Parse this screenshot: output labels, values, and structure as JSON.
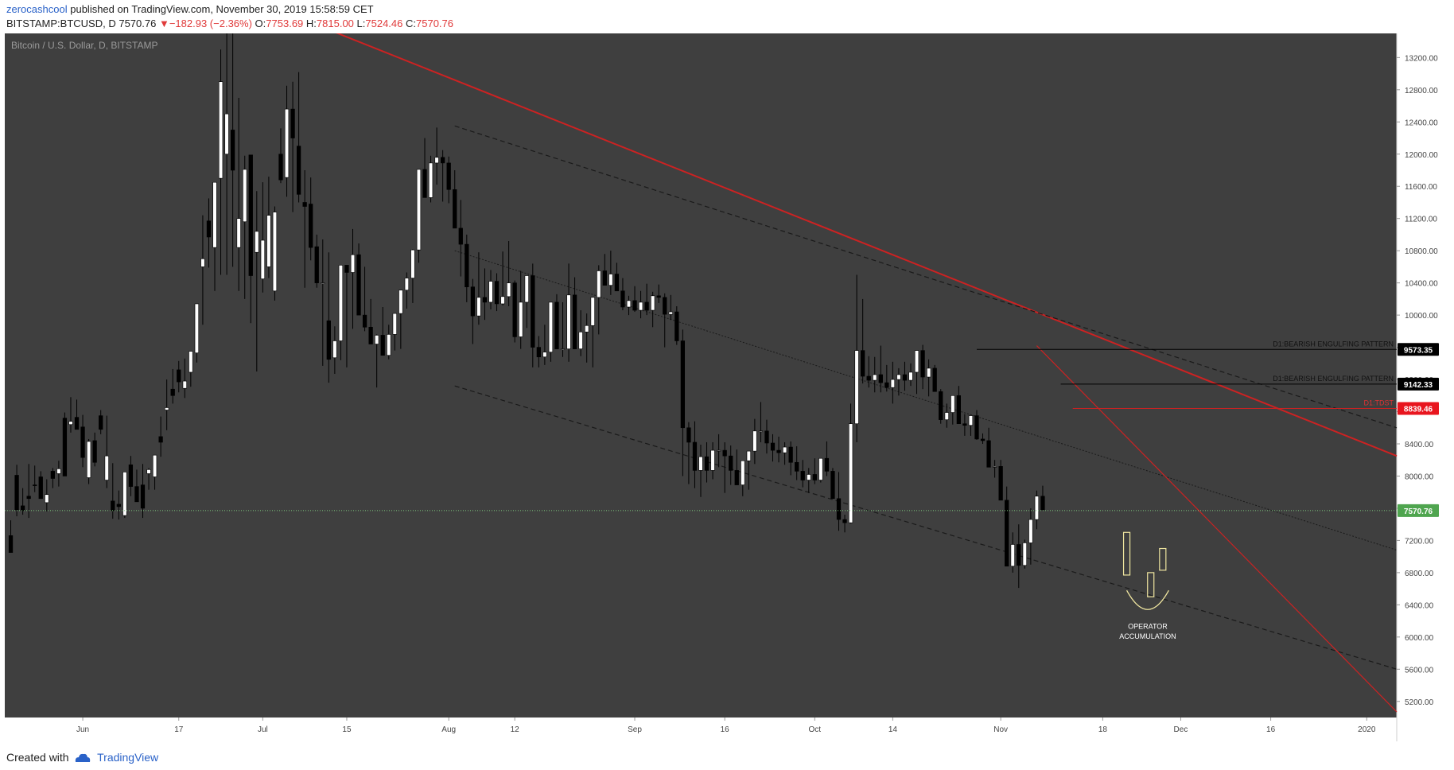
{
  "header": {
    "author": "zerocashcool",
    "published_text": "published on TradingView.com, November 30, 2019 15:58:59 CET",
    "symbol": "BITSTAMP:BTCUSD, D",
    "last": "7570.76",
    "change": "−182.93 (−2.36%)",
    "o_label": "O:",
    "o": "7753.69",
    "h_label": "H:",
    "h": "7815.00",
    "l_label": "L:",
    "l": "7524.46",
    "c_label": "C:",
    "c": "7570.76"
  },
  "footer": {
    "created_with": "Created with",
    "brand": "TradingView"
  },
  "colors": {
    "background": "#3f3f3f",
    "bull": "#ffffff",
    "bear": "#000000",
    "trend": "#cc2222",
    "price_line": "#7fc97f",
    "accumulation": "#f0e6a0"
  },
  "chart_data": {
    "type": "candlestick",
    "title": "Bitcoin / U.S. Dollar, D, BITSTAMP",
    "y_ticks": [
      "13200.00",
      "12800.00",
      "12400.00",
      "12000.00",
      "11600.00",
      "11200.00",
      "10800.00",
      "10400.00",
      "10000.00",
      "9600.00",
      "9200.00",
      "8800.00",
      "8400.00",
      "8000.00",
      "7600.00",
      "7200.00",
      "6800.00",
      "6400.00",
      "6000.00",
      "5600.00",
      "5200.00"
    ],
    "ylim": [
      5000,
      13500
    ],
    "x_ticks": [
      {
        "label": "Jun",
        "date": "2019-06-01"
      },
      {
        "label": "17",
        "date": "2019-06-17"
      },
      {
        "label": "Jul",
        "date": "2019-07-01"
      },
      {
        "label": "15",
        "date": "2019-07-15"
      },
      {
        "label": "Aug",
        "date": "2019-08-01"
      },
      {
        "label": "12",
        "date": "2019-08-12"
      },
      {
        "label": "Sep",
        "date": "2019-09-01"
      },
      {
        "label": "16",
        "date": "2019-09-16"
      },
      {
        "label": "Oct",
        "date": "2019-10-01"
      },
      {
        "label": "14",
        "date": "2019-10-14"
      },
      {
        "label": "Nov",
        "date": "2019-11-01"
      },
      {
        "label": "18",
        "date": "2019-11-18"
      },
      {
        "label": "Dec",
        "date": "2019-12-01"
      },
      {
        "label": "16",
        "date": "2019-12-16"
      },
      {
        "label": "2020",
        "date": "2020-01-01"
      }
    ],
    "xlim": [
      "2019-05-19",
      "2020-01-06"
    ],
    "series_start": "2019-05-20",
    "series": [
      [
        7260,
        7450,
        7050,
        7050
      ],
      [
        8010,
        8140,
        7500,
        7580
      ],
      [
        7630,
        7850,
        7520,
        7570
      ],
      [
        7750,
        8150,
        7480,
        7720
      ],
      [
        7890,
        8130,
        7800,
        7880
      ],
      [
        7990,
        8060,
        7720,
        7720
      ],
      [
        7670,
        7960,
        7560,
        7770
      ],
      [
        8060,
        8100,
        7850,
        7970
      ],
      [
        8030,
        8190,
        7870,
        8090
      ],
      [
        8720,
        8790,
        8000,
        8000
      ],
      [
        8640,
        8980,
        8540,
        8680
      ],
      [
        8730,
        8950,
        8590,
        8580
      ],
      [
        8610,
        8760,
        8110,
        8230
      ],
      [
        7980,
        8460,
        7900,
        8430
      ],
      [
        8440,
        8540,
        8120,
        8170
      ],
      [
        8750,
        8820,
        8520,
        8580
      ],
      [
        7950,
        8750,
        7850,
        8250
      ],
      [
        7690,
        8160,
        7470,
        7570
      ],
      [
        7650,
        7820,
        7460,
        7620
      ],
      [
        7510,
        7990,
        7480,
        8050
      ],
      [
        8140,
        8250,
        7750,
        7870
      ],
      [
        7870,
        8080,
        7800,
        7680
      ],
      [
        7890,
        8150,
        7480,
        7600
      ],
      [
        8030,
        8100,
        7830,
        8080
      ],
      [
        7990,
        8190,
        7830,
        8260
      ],
      [
        8490,
        8740,
        8240,
        8420
      ],
      [
        8820,
        9200,
        8570,
        8850
      ],
      [
        9080,
        9330,
        8900,
        9000
      ],
      [
        9320,
        9430,
        9040,
        9170
      ],
      [
        9090,
        9460,
        8970,
        9180
      ],
      [
        9290,
        9540,
        9110,
        9550
      ],
      [
        9530,
        9790,
        9410,
        10140
      ],
      [
        10600,
        11240,
        9880,
        10700
      ],
      [
        11170,
        11450,
        10590,
        10970
      ],
      [
        10840,
        11250,
        10300,
        11650
      ],
      [
        11700,
        13300,
        10500,
        12900
      ],
      [
        12000,
        13900,
        10500,
        12500
      ],
      [
        12300,
        13500,
        10600,
        11800
      ],
      [
        10840,
        12700,
        10300,
        11200
      ],
      [
        11160,
        11980,
        10200,
        11810
      ],
      [
        11990,
        11670,
        9900,
        10490
      ],
      [
        10780,
        11540,
        9300,
        11040
      ],
      [
        10450,
        11650,
        10280,
        10930
      ],
      [
        10600,
        11720,
        10460,
        11240
      ],
      [
        10300,
        11350,
        10180,
        11280
      ],
      [
        12000,
        12320,
        11640,
        11680
      ],
      [
        11710,
        12850,
        11470,
        12560
      ],
      [
        12560,
        12900,
        11280,
        12200
      ],
      [
        12100,
        13020,
        11400,
        11500
      ],
      [
        11400,
        11800,
        10340,
        11350
      ],
      [
        11380,
        11710,
        10680,
        10840
      ],
      [
        10850,
        11000,
        10340,
        10400
      ],
      [
        10400,
        10940,
        9370,
        10400
      ],
      [
        9930,
        10780,
        9160,
        9450
      ],
      [
        9470,
        9860,
        9270,
        9680
      ],
      [
        9680,
        10180,
        9440,
        10620
      ],
      [
        10620,
        10620,
        9350,
        10530
      ],
      [
        10530,
        11070,
        9830,
        10750
      ],
      [
        10750,
        10890,
        10150,
        10000
      ],
      [
        10000,
        10600,
        9800,
        9850
      ],
      [
        9850,
        10200,
        9700,
        9640
      ],
      [
        9640,
        9760,
        9100,
        9750
      ],
      [
        9750,
        10100,
        9620,
        9500
      ],
      [
        9500,
        9880,
        9450,
        9760
      ],
      [
        9760,
        10000,
        9560,
        10020
      ],
      [
        10020,
        10230,
        9580,
        10310
      ],
      [
        10310,
        10530,
        10080,
        10460
      ],
      [
        10460,
        10820,
        10150,
        10810
      ],
      [
        10810,
        11470,
        10650,
        11810
      ],
      [
        11810,
        12200,
        11570,
        11460
      ],
      [
        11460,
        11980,
        11400,
        11890
      ],
      [
        11890,
        12330,
        11620,
        11960
      ],
      [
        11960,
        12050,
        11410,
        11890
      ],
      [
        11890,
        11970,
        11390,
        11560
      ],
      [
        11560,
        11800,
        11300,
        11080
      ],
      [
        11080,
        11430,
        10480,
        10880
      ],
      [
        10880,
        11000,
        10160,
        10350
      ],
      [
        10350,
        10450,
        9640,
        9990
      ],
      [
        9990,
        10780,
        9880,
        10220
      ],
      [
        10220,
        10580,
        9940,
        10160
      ],
      [
        10160,
        10560,
        10070,
        10420
      ],
      [
        10420,
        10520,
        10050,
        10140
      ],
      [
        10140,
        10790,
        10120,
        10230
      ],
      [
        10230,
        10920,
        10110,
        10400
      ],
      [
        10400,
        10430,
        9660,
        9730
      ],
      [
        9730,
        10550,
        9580,
        10160
      ],
      [
        10160,
        10230,
        9840,
        10490
      ],
      [
        10490,
        10640,
        9350,
        9600
      ],
      [
        9600,
        9740,
        9350,
        9480
      ],
      [
        9480,
        9880,
        9380,
        9540
      ],
      [
        9540,
        9910,
        9420,
        10160
      ],
      [
        10160,
        10260,
        9730,
        9580
      ],
      [
        9580,
        10160,
        9480,
        9580
      ],
      [
        9580,
        10640,
        9420,
        10250
      ],
      [
        10250,
        10470,
        9740,
        9580
      ],
      [
        9580,
        10060,
        9490,
        9790
      ],
      [
        9790,
        10020,
        9410,
        9870
      ],
      [
        9870,
        10050,
        9350,
        10220
      ],
      [
        10220,
        10620,
        9760,
        10550
      ],
      [
        10550,
        10760,
        10500,
        10370
      ],
      [
        10370,
        10800,
        10250,
        10510
      ],
      [
        10510,
        10650,
        10340,
        10300
      ],
      [
        10300,
        10460,
        10060,
        10100
      ],
      [
        10100,
        10240,
        10000,
        10180
      ],
      [
        10180,
        10360,
        10040,
        10060
      ],
      [
        10060,
        10300,
        9960,
        10160
      ],
      [
        10160,
        10390,
        10000,
        10060
      ],
      [
        10060,
        10290,
        9850,
        10240
      ],
      [
        10240,
        10380,
        10150,
        10220
      ],
      [
        10220,
        10270,
        9600,
        10010
      ],
      [
        10010,
        10250,
        9940,
        10040
      ],
      [
        10040,
        10110,
        9630,
        9680
      ],
      [
        9680,
        9820,
        8000,
        8600
      ],
      [
        8600,
        8670,
        7900,
        8420
      ],
      [
        8420,
        8680,
        7850,
        8070
      ],
      [
        8070,
        8390,
        7740,
        8240
      ],
      [
        8240,
        8420,
        7920,
        8070
      ],
      [
        8070,
        8420,
        7960,
        8320
      ],
      [
        8320,
        8520,
        8110,
        8320
      ],
      [
        8320,
        8420,
        7790,
        8250
      ],
      [
        8250,
        8380,
        7890,
        8070
      ],
      [
        8070,
        8330,
        7900,
        7890
      ],
      [
        7890,
        8160,
        7750,
        8190
      ],
      [
        8190,
        8310,
        7830,
        8310
      ],
      [
        8310,
        8710,
        8150,
        8560
      ],
      [
        8560,
        8920,
        8420,
        8560
      ],
      [
        8560,
        8700,
        8280,
        8410
      ],
      [
        8410,
        8520,
        8180,
        8320
      ],
      [
        8320,
        8490,
        8170,
        8290
      ],
      [
        8290,
        8420,
        8140,
        8360
      ],
      [
        8360,
        8430,
        8010,
        8170
      ],
      [
        8170,
        8370,
        7950,
        8060
      ],
      [
        8060,
        8200,
        7860,
        7950
      ],
      [
        7950,
        8100,
        7790,
        8020
      ],
      [
        8020,
        8220,
        7900,
        7950
      ],
      [
        7950,
        8110,
        7920,
        8220
      ],
      [
        8220,
        8430,
        8000,
        8060
      ],
      [
        8060,
        8100,
        7850,
        7720
      ],
      [
        7720,
        8050,
        7320,
        7460
      ],
      [
        7460,
        7520,
        7300,
        7420
      ],
      [
        7420,
        8900,
        7410,
        8650
      ],
      [
        8650,
        10500,
        8420,
        9560
      ],
      [
        9560,
        10200,
        9150,
        9240
      ],
      [
        9240,
        9490,
        9100,
        9190
      ],
      [
        9190,
        9480,
        9040,
        9260
      ],
      [
        9260,
        9620,
        9040,
        9160
      ],
      [
        9160,
        9380,
        9050,
        9100
      ],
      [
        9100,
        9420,
        8900,
        9200
      ],
      [
        9200,
        9340,
        9000,
        9260
      ],
      [
        9260,
        9420,
        9060,
        9190
      ],
      [
        9190,
        9400,
        9120,
        9290
      ],
      [
        9290,
        9550,
        9020,
        9560
      ],
      [
        9560,
        9630,
        9080,
        9230
      ],
      [
        9230,
        9450,
        8990,
        9340
      ],
      [
        9340,
        9380,
        9080,
        9050
      ],
      [
        9050,
        9080,
        8650,
        8700
      ],
      [
        8700,
        8900,
        8600,
        8790
      ],
      [
        8790,
        8850,
        8640,
        9000
      ],
      [
        9000,
        9120,
        8650,
        8650
      ],
      [
        8650,
        8770,
        8500,
        8630
      ],
      [
        8630,
        8700,
        8500,
        8750
      ],
      [
        8750,
        8820,
        8450,
        8460
      ],
      [
        8460,
        8530,
        8400,
        8440
      ],
      [
        8440,
        8600,
        8200,
        8110
      ],
      [
        8110,
        8200,
        7980,
        8120
      ],
      [
        8120,
        8200,
        7700,
        7700
      ],
      [
        7700,
        7870,
        7180,
        6880
      ],
      [
        6880,
        7300,
        6800,
        7150
      ],
      [
        7150,
        7400,
        6610,
        6890
      ],
      [
        6890,
        7210,
        6850,
        7170
      ],
      [
        7170,
        7600,
        6900,
        7460
      ],
      [
        7460,
        7820,
        7340,
        7750
      ],
      [
        7750,
        7880,
        7650,
        7580
      ]
    ],
    "levels": [
      {
        "label": "D1:BEARISH ENGULFING PATTERN",
        "value": 9573.35,
        "tag": "9573.35"
      },
      {
        "label": "D1:BEARISH ENGULFING PATTERN",
        "value": 9142.33,
        "tag": "9142.33"
      },
      {
        "label": "D1:TDST",
        "value": 8839.46,
        "tag": "8839.46"
      }
    ],
    "current_price": {
      "value": 7570.76,
      "tag": "7570.76"
    },
    "annotation": {
      "line1": "OPERATOR",
      "line2": "ACCUMULATION"
    }
  }
}
